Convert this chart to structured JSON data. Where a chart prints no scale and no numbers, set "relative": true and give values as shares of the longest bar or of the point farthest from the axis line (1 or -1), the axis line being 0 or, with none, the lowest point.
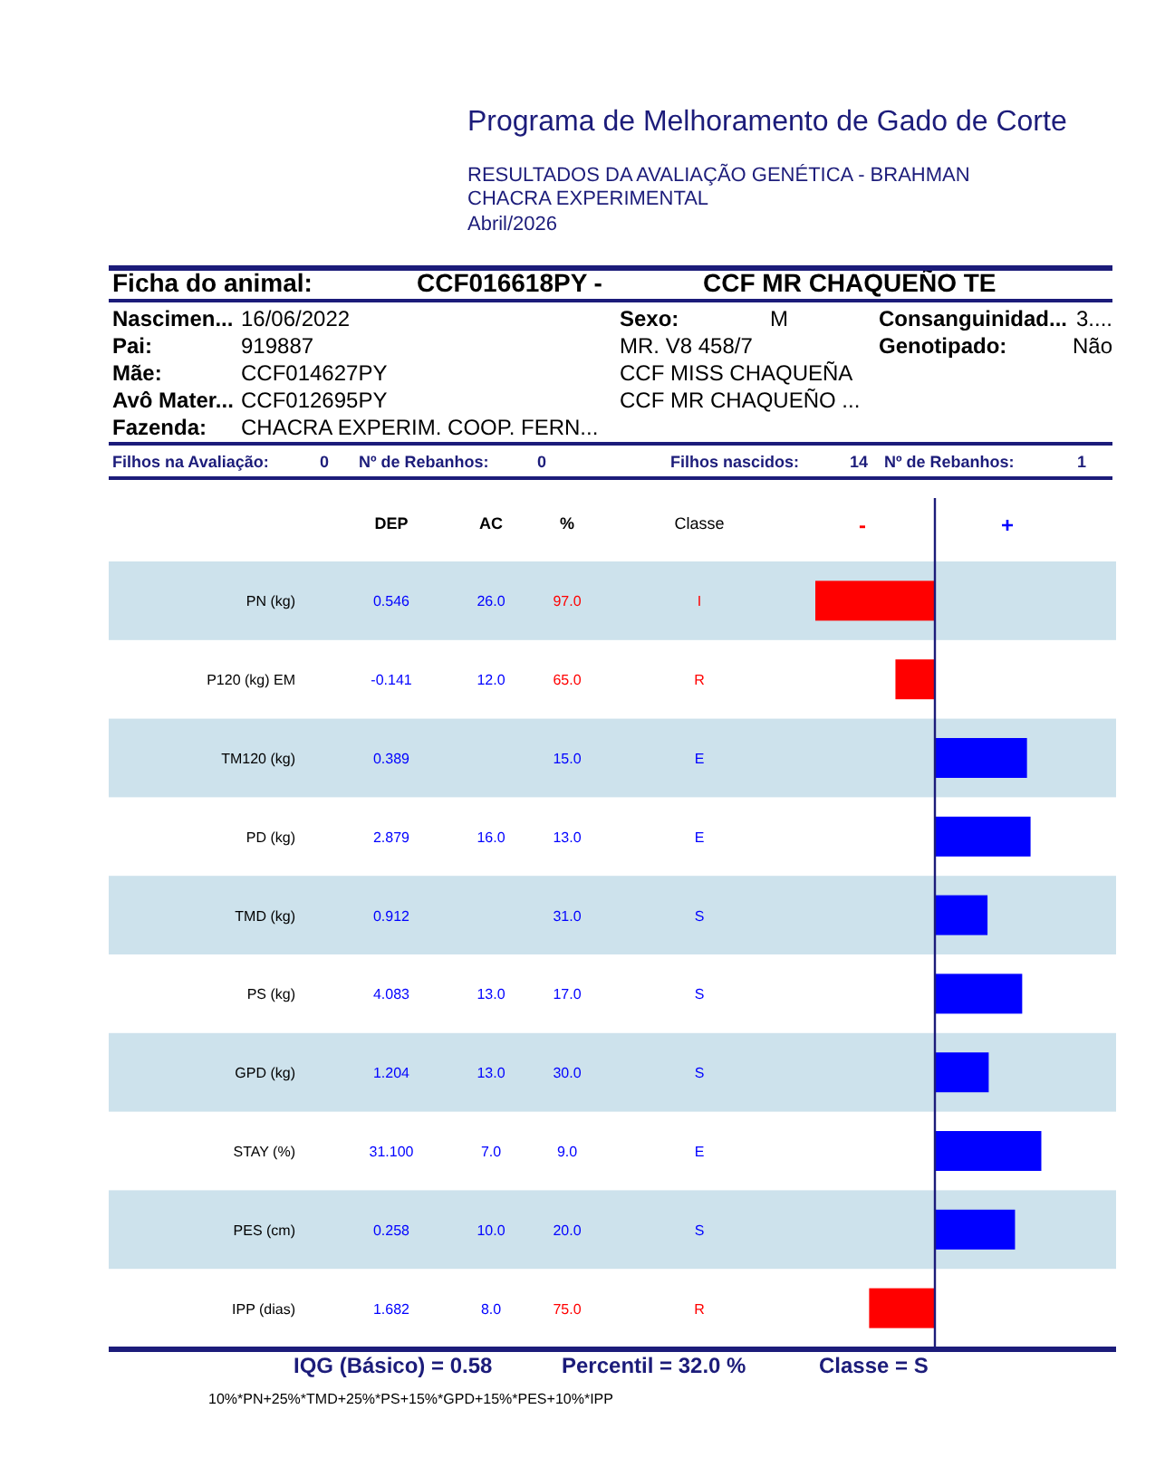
{
  "chart_data": [
    {
      "type": "other",
      "title": "Programa de Melhoramento de Gado de Corte",
      "subtitle": "RESULTADOS DA AVALIAÇÃO GENÉTICA - BRAHMAN",
      "annotations": [
        "CHACRA EXPERIMENTAL",
        "Abril/2026",
        "Ficha do animal:",
        "CCF016618PY -",
        "CCF MR CHAQUEÑO TE",
        "Nascimen...",
        "16/06/2022",
        "Pai:",
        "919887",
        "Mãe:",
        "CCF014627PY",
        "Avô Mater...",
        "CCF012695PY",
        "Fazenda:",
        "CHACRA EXPERIM. COOP. FERN...",
        "Sexo:",
        "M",
        "MR. V8 458/7",
        "CCF MISS CHAQUEÑA",
        "CCF MR CHAQUEÑO ...",
        "Consanguinidad...",
        "3....",
        "Genotipado:",
        "Não",
        "Filhos na Avaliação:",
        "0",
        "Nº de Rebanhos:",
        "0",
        "Filhos nascidos:",
        "14",
        "Nº de Rebanhos:",
        "1"
      ]
    },
    {
      "type": "bar",
      "orientation": "horizontal",
      "relative": true,
      "ref_lines": [
        {
          "axis": "x",
          "value": 0,
          "color": "#1c1c7a"
        }
      ],
      "categories": [
        "PN (kg)",
        "P120 (kg) EM",
        "TM120 (kg)",
        "PD (kg)",
        "TMD (kg)",
        "PS (kg)",
        "GPD (kg)",
        "STAY (%)",
        "PES (cm)",
        "IPP (dias)"
      ],
      "values": [
        -1,
        -0.33,
        0.77,
        0.8,
        0.44,
        0.73,
        0.45,
        0.89,
        0.67,
        -0.55
      ],
      "colors": [
        "#ff0000",
        "#ff0000",
        "#0000ff",
        "#0000ff",
        "#0000ff",
        "#0000ff",
        "#0000ff",
        "#0000ff",
        "#0000ff",
        "#ff0000"
      ],
      "annotations": [
        "DEP",
        "AC",
        "%",
        "Classe",
        "-",
        "+",
        "0.546",
        "26.0",
        "97.0",
        "I",
        "-0.141",
        "12.0",
        "65.0",
        "R",
        "0.389",
        null,
        "15.0",
        "E",
        "2.879",
        "16.0",
        "13.0",
        "E",
        "0.912",
        null,
        "31.0",
        "S",
        "4.083",
        "13.0",
        "17.0",
        "S",
        "1.204",
        "13.0",
        "30.0",
        "S",
        "31.100",
        "7.0",
        "9.0",
        "E",
        "0.258",
        "10.0",
        "20.0",
        "S",
        "1.682",
        "8.0",
        "75.0",
        "R",
        "IQG (Básico) = 0.58",
        "Percentil = 32.0 %",
        "Classe = S",
        "10%*PN+25%*TMD+25%*PS+15%*GPD+15%*PES+10%*IPP"
      ]
    }
  ]
}
